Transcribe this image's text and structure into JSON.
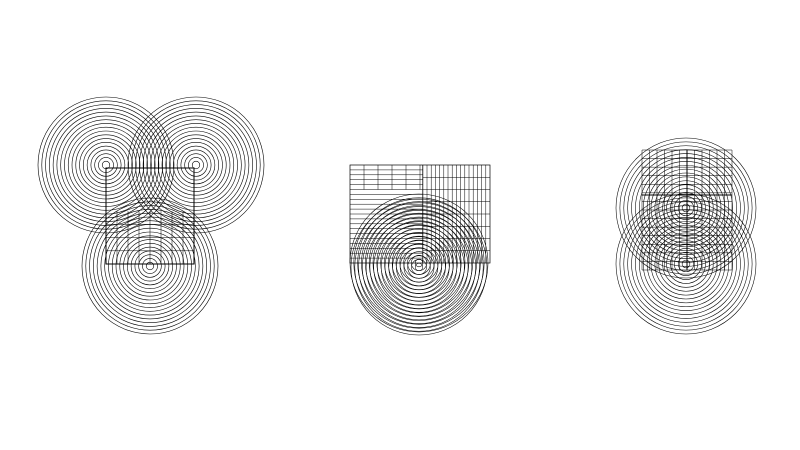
{
  "page": {
    "background_color": "#ffffff",
    "line_color": "#000000"
  },
  "figures": [
    {
      "name": "three-overlapping-concentric-circle-groups-with-square",
      "rings_per_circle": 18,
      "grid_lines": 8
    },
    {
      "name": "two-concentric-circles-with-rectangular-grid",
      "rings_per_circle": 18,
      "grid_lines": 20
    },
    {
      "name": "two-stacked-concentric-circles-with-grid",
      "rings_per_circle": 18,
      "grid_lines": 12
    }
  ]
}
